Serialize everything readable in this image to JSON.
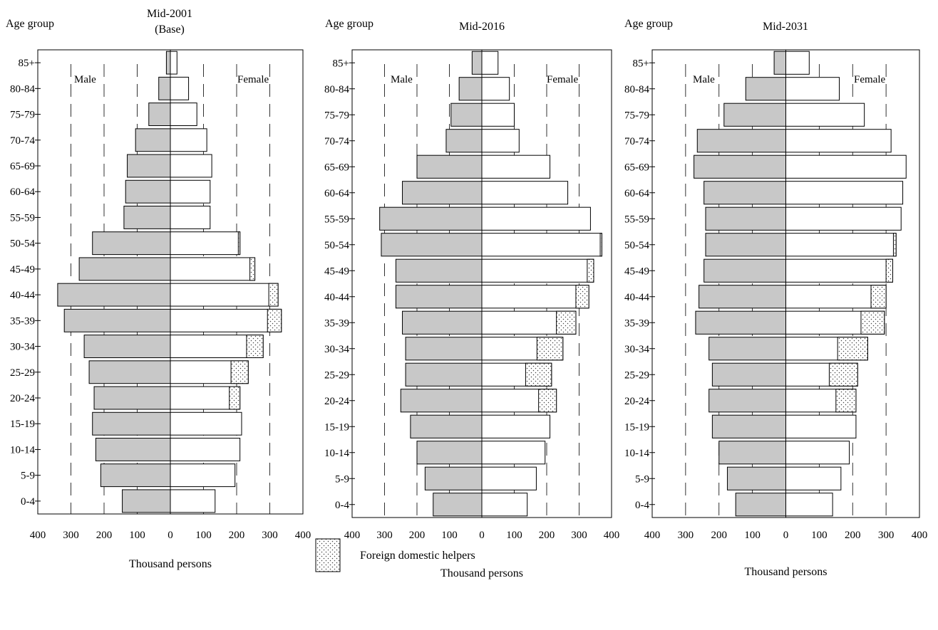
{
  "chart_data": [
    {
      "type": "population-pyramid",
      "title": "Mid-2001",
      "subtitle": "(Base)",
      "ylabel": "Age group",
      "xlabel": "Thousand persons",
      "left_label": "Male",
      "right_label": "Female",
      "xlim": [
        -400,
        400
      ],
      "x_ticks": [
        "400",
        "300",
        "200",
        "100",
        "0",
        "100",
        "200",
        "300",
        "400"
      ],
      "categories": [
        "0-4",
        "5-9",
        "10-14",
        "15-19",
        "20-24",
        "25-29",
        "30-34",
        "35-39",
        "40-44",
        "45-49",
        "50-54",
        "55-59",
        "60-64",
        "65-69",
        "70-74",
        "75-79",
        "80-84",
        "85+"
      ],
      "series": [
        {
          "name": "Male",
          "values": [
            145,
            210,
            225,
            235,
            230,
            245,
            260,
            320,
            340,
            275,
            235,
            140,
            135,
            130,
            105,
            65,
            35,
            12
          ]
        },
        {
          "name": "Female",
          "values": [
            135,
            195,
            210,
            215,
            210,
            235,
            280,
            335,
            325,
            255,
            210,
            120,
            120,
            125,
            110,
            80,
            55,
            20
          ]
        },
        {
          "name": "Foreign domestic helpers",
          "values": [
            0,
            0,
            0,
            0,
            32,
            52,
            50,
            42,
            28,
            15,
            5,
            0,
            0,
            0,
            0,
            0,
            0,
            0
          ]
        }
      ]
    },
    {
      "type": "population-pyramid",
      "title": "Mid-2016",
      "subtitle": "",
      "ylabel": "Age group",
      "xlabel": "Thousand persons",
      "left_label": "Male",
      "right_label": "Female",
      "xlim": [
        -400,
        400
      ],
      "x_ticks": [
        "400",
        "300",
        "200",
        "100",
        "0",
        "100",
        "200",
        "300",
        "400"
      ],
      "categories": [
        "0-4",
        "5-9",
        "10-14",
        "15-19",
        "20-24",
        "25-29",
        "30-34",
        "35-39",
        "40-44",
        "45-49",
        "50-54",
        "55-59",
        "60-64",
        "65-69",
        "70-74",
        "75-79",
        "80-84",
        "85+"
      ],
      "series": [
        {
          "name": "Male",
          "values": [
            150,
            175,
            200,
            220,
            250,
            235,
            235,
            245,
            265,
            265,
            310,
            315,
            245,
            200,
            110,
            95,
            70,
            30
          ]
        },
        {
          "name": "Female",
          "values": [
            140,
            168,
            195,
            210,
            230,
            215,
            250,
            290,
            330,
            345,
            370,
            335,
            265,
            210,
            115,
            100,
            85,
            50
          ]
        },
        {
          "name": "Foreign domestic helpers",
          "values": [
            0,
            0,
            0,
            0,
            55,
            80,
            80,
            60,
            40,
            20,
            5,
            0,
            0,
            0,
            0,
            0,
            0,
            0
          ]
        }
      ]
    },
    {
      "type": "population-pyramid",
      "title": "Mid-2031",
      "subtitle": "",
      "ylabel": "Age group",
      "xlabel": "Thousand persons",
      "left_label": "Male",
      "right_label": "Female",
      "xlim": [
        -400,
        400
      ],
      "x_ticks": [
        "400",
        "300",
        "200",
        "100",
        "0",
        "100",
        "200",
        "300",
        "400"
      ],
      "categories": [
        "0-4",
        "5-9",
        "10-14",
        "15-19",
        "20-24",
        "25-29",
        "30-34",
        "35-39",
        "40-44",
        "45-49",
        "50-54",
        "55-59",
        "60-64",
        "65-69",
        "70-74",
        "75-79",
        "80-84",
        "85+"
      ],
      "series": [
        {
          "name": "Male",
          "values": [
            150,
            175,
            200,
            220,
            230,
            220,
            230,
            270,
            260,
            245,
            240,
            240,
            245,
            275,
            265,
            185,
            120,
            35
          ]
        },
        {
          "name": "Female",
          "values": [
            140,
            165,
            190,
            210,
            210,
            215,
            245,
            295,
            300,
            320,
            330,
            345,
            350,
            360,
            315,
            235,
            160,
            70
          ]
        },
        {
          "name": "Foreign domestic helpers",
          "values": [
            0,
            0,
            0,
            0,
            60,
            85,
            90,
            70,
            45,
            20,
            8,
            0,
            0,
            0,
            0,
            0,
            0,
            0
          ]
        }
      ]
    }
  ],
  "legend": {
    "label": "Foreign domestic helpers"
  },
  "colors": {
    "male": "#c8c8c8",
    "female": "#ffffff",
    "fdh_dots": "#444444",
    "stroke": "#000000"
  }
}
